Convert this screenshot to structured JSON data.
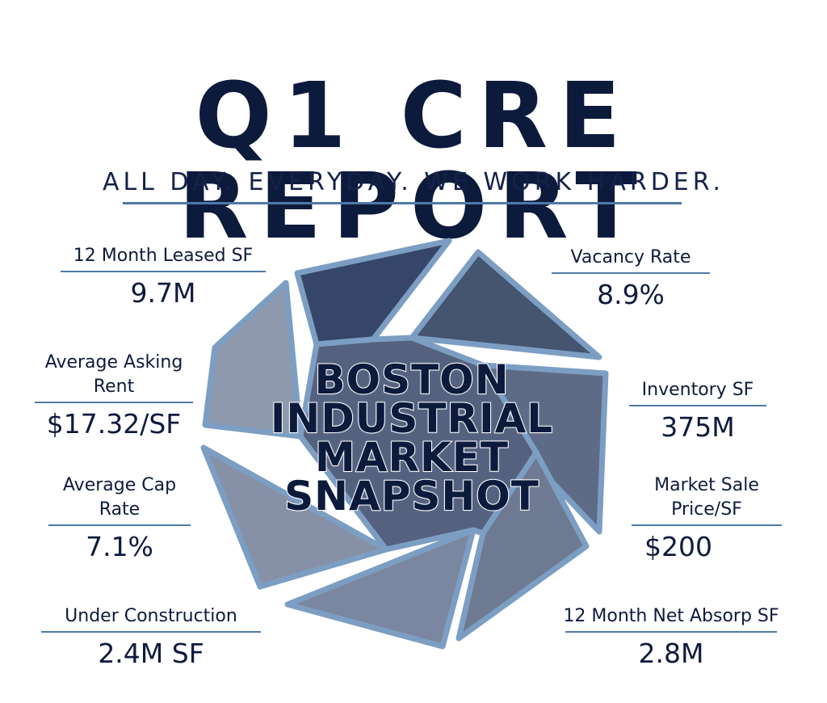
{
  "header": {
    "title": "Q1 CRE REPORT",
    "tagline": "ALL DAY. EVERYDAY. WE WORK HARDER."
  },
  "center": {
    "lines": [
      "BOSTON",
      "INDUSTRIAL",
      "MARKET",
      "SNAPSHOT"
    ]
  },
  "stats": {
    "leased": {
      "label": "12 Month Leased SF",
      "value": "9.7M"
    },
    "asking_rent": {
      "label_line1": "Average Asking",
      "label_line2": "Rent",
      "value": "$17.32/SF"
    },
    "cap_rate": {
      "label_line1": "Average Cap",
      "label_line2": "Rate",
      "value": "7.1%"
    },
    "under_construction": {
      "label": "Under Construction",
      "value": "2.4M SF"
    },
    "vacancy": {
      "label": "Vacancy Rate",
      "value": "8.9%"
    },
    "inventory": {
      "label": "Inventory SF",
      "value": "375M"
    },
    "sale_price": {
      "label_line1": "Market Sale",
      "label_line2": "Price/SF",
      "value": "$200"
    },
    "net_absorp": {
      "label": "12 Month Net Absorp SF",
      "value": "2.8M"
    }
  },
  "colors": {
    "navy": "#0c1a3c",
    "accent_blue": "#4f79a8",
    "blade_outline": "#7c9ec3",
    "blades": [
      "#36466a",
      "#45546f",
      "#55627f",
      "#5d6b87",
      "#6e7a92",
      "#7b87a0",
      "#8691a8",
      "#8f99ae"
    ]
  }
}
